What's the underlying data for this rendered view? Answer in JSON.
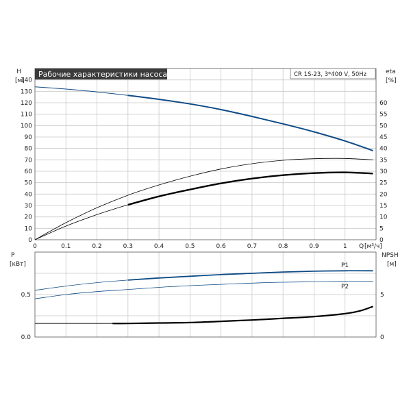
{
  "top_title": "Рабочие характеристики насоса",
  "pump_label": "CR 1S-23, 3*400 V, 50Hz",
  "colors": {
    "blue": "#0e4b86",
    "black": "#000000",
    "grid": "#c8c8c8",
    "title_bg": "#3b3b3b"
  },
  "chart_data": [
    {
      "type": "line",
      "title": "Рабочие характеристики насоса",
      "ylabel": "H",
      "yunit": "[м]",
      "y2label": "eta",
      "y2unit": "[%]",
      "xlabel": "Q",
      "xunit": "[м³/ч]",
      "xlim": [
        0,
        1.1
      ],
      "ylim": [
        0,
        150
      ],
      "y2lim": [
        0,
        75
      ],
      "x_ticks": [
        "0",
        "0.1",
        "0.2",
        "0.3",
        "0.4",
        "0.5",
        "0.6",
        "0.7",
        "0.8",
        "0.9",
        "1",
        "Q"
      ],
      "y_ticks": [
        "0",
        "10",
        "20",
        "30",
        "40",
        "50",
        "60",
        "70",
        "80",
        "90",
        "100",
        "110",
        "120",
        "130",
        "140"
      ],
      "y2_ticks": [
        "0",
        "5",
        "10",
        "15",
        "20",
        "25",
        "30",
        "35",
        "40",
        "45",
        "50",
        "55",
        "60"
      ],
      "series": [
        {
          "role": "head",
          "axis": "left",
          "x": [
            0,
            0.1,
            0.2,
            0.3,
            0.4,
            0.5,
            0.6,
            0.7,
            0.8,
            0.9,
            1.0,
            1.09
          ],
          "y": [
            134,
            132,
            129.5,
            126.5,
            123,
            119,
            114,
            108,
            101.5,
            94.5,
            86.5,
            78
          ]
        },
        {
          "role": "efficiency-upper",
          "axis": "right",
          "x": [
            0,
            0.1,
            0.2,
            0.3,
            0.4,
            0.5,
            0.6,
            0.7,
            0.8,
            0.9,
            1.0,
            1.09
          ],
          "y": [
            0,
            7.5,
            14,
            19.5,
            24,
            27.8,
            31,
            33.3,
            34.8,
            35.5,
            35.6,
            35
          ]
        },
        {
          "role": "efficiency",
          "axis": "right",
          "x": [
            0,
            0.1,
            0.2,
            0.3,
            0.4,
            0.5,
            0.6,
            0.7,
            0.8,
            0.9,
            1.0,
            1.09
          ],
          "y": [
            0,
            6,
            11,
            15.3,
            19,
            22,
            24.7,
            26.8,
            28.3,
            29.2,
            29.5,
            29
          ]
        }
      ]
    },
    {
      "type": "line",
      "ylabel": "P",
      "yunit": "[кВт]",
      "y2label": "NPSH",
      "y2unit": "[м]",
      "xlim": [
        0,
        1.1
      ],
      "ylim": [
        0,
        1
      ],
      "y2lim": [
        0,
        10
      ],
      "y_ticks": [
        "0.0",
        "0.5"
      ],
      "y2_ticks": [
        "0",
        "5"
      ],
      "series": [
        {
          "name": "P1",
          "axis": "left",
          "x": [
            0,
            0.1,
            0.2,
            0.3,
            0.4,
            0.5,
            0.6,
            0.7,
            0.8,
            0.9,
            1.0,
            1.09
          ],
          "y": [
            0.55,
            0.6,
            0.64,
            0.67,
            0.695,
            0.715,
            0.735,
            0.75,
            0.765,
            0.775,
            0.78,
            0.78
          ]
        },
        {
          "name": "P2",
          "axis": "left",
          "x": [
            0,
            0.1,
            0.2,
            0.3,
            0.4,
            0.5,
            0.6,
            0.7,
            0.8,
            0.9,
            1.0,
            1.09
          ],
          "y": [
            0.45,
            0.5,
            0.535,
            0.56,
            0.585,
            0.605,
            0.62,
            0.635,
            0.645,
            0.65,
            0.655,
            0.655
          ]
        },
        {
          "role": "npsh",
          "axis": "right",
          "x": [
            0,
            0.1,
            0.2,
            0.25,
            0.3,
            0.4,
            0.5,
            0.6,
            0.7,
            0.8,
            0.9,
            1.0,
            1.05,
            1.09
          ],
          "y": [
            1.6,
            1.6,
            1.6,
            1.6,
            1.6,
            1.65,
            1.7,
            1.85,
            2.0,
            2.2,
            2.4,
            2.75,
            3.1,
            3.6
          ]
        }
      ]
    }
  ]
}
